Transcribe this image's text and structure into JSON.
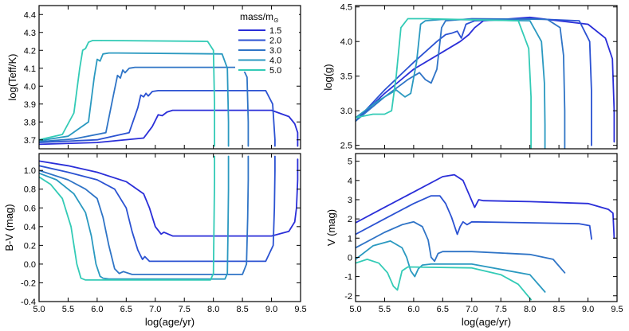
{
  "chart_data": {
    "type": "line",
    "legend": {
      "title_main": "mass/m",
      "title_sub": "⊙",
      "placement": "top-right of top-left panel"
    },
    "series_meta": [
      {
        "name": "1.5",
        "color": "#2a2ed8"
      },
      {
        "name": "2.0",
        "color": "#2b52d2"
      },
      {
        "name": "3.0",
        "color": "#2f74c6"
      },
      {
        "name": "4.0",
        "color": "#2a99c0"
      },
      {
        "name": "5.0",
        "color": "#33cbb6"
      }
    ],
    "panels": [
      {
        "id": "teff",
        "ylabel": "log(Teff/K)",
        "xlabel": "",
        "xlim": [
          5.0,
          9.5
        ],
        "ylim": [
          3.65,
          4.45
        ],
        "xticks": [],
        "yticks": [
          {
            "v": 3.7,
            "t": "3.7"
          },
          {
            "v": 3.8,
            "t": "3.8"
          },
          {
            "v": 3.9,
            "t": "3.9"
          },
          {
            "v": 4.0,
            "t": "4.0"
          },
          {
            "v": 4.1,
            "t": "4.1"
          },
          {
            "v": 4.2,
            "t": "4.2"
          },
          {
            "v": 4.3,
            "t": "4.3"
          },
          {
            "v": 4.4,
            "t": "4.4"
          }
        ],
        "series": [
          {
            "name": "1.5",
            "x": [
              5.0,
              6.0,
              6.8,
              6.95,
              7.05,
              7.12,
              7.2,
              7.3,
              9.0,
              9.3,
              9.4,
              9.45,
              9.45
            ],
            "y": [
              3.675,
              3.685,
              3.71,
              3.775,
              3.84,
              3.835,
              3.855,
              3.865,
              3.865,
              3.83,
              3.79,
              3.74,
              3.665
            ]
          },
          {
            "name": "2.0",
            "x": [
              5.0,
              6.0,
              6.55,
              6.7,
              6.75,
              6.8,
              6.84,
              6.88,
              6.95,
              7.05,
              8.9,
              9.02,
              9.06,
              9.06
            ],
            "y": [
              3.685,
              3.7,
              3.74,
              3.88,
              3.95,
              3.94,
              3.96,
              3.945,
              3.97,
              3.975,
              3.975,
              3.9,
              3.7,
              3.665
            ]
          },
          {
            "name": "3.0",
            "x": [
              5.0,
              5.6,
              6.15,
              6.28,
              6.35,
              6.4,
              6.44,
              6.48,
              6.55,
              6.65,
              8.5,
              8.58,
              8.6,
              8.6
            ],
            "y": [
              3.69,
              3.705,
              3.74,
              3.95,
              4.06,
              4.045,
              4.09,
              4.075,
              4.1,
              4.105,
              4.105,
              4.05,
              3.8,
              3.665
            ]
          },
          {
            "name": "4.0",
            "x": [
              5.0,
              5.5,
              5.85,
              5.95,
              6.0,
              6.05,
              6.1,
              6.2,
              6.35,
              8.15,
              8.24,
              8.26,
              8.26
            ],
            "y": [
              3.695,
              3.72,
              3.8,
              4.05,
              4.15,
              4.14,
              4.18,
              4.185,
              4.185,
              4.18,
              4.1,
              3.8,
              3.665
            ]
          },
          {
            "name": "5.0",
            "x": [
              5.0,
              5.4,
              5.6,
              5.7,
              5.75,
              5.8,
              5.85,
              5.92,
              6.05,
              7.9,
              8.0,
              8.02,
              8.02
            ],
            "y": [
              3.7,
              3.73,
              3.85,
              4.1,
              4.2,
              4.21,
              4.245,
              4.255,
              4.255,
              4.25,
              4.2,
              3.9,
              3.665
            ]
          }
        ]
      },
      {
        "id": "logg",
        "ylabel": "log(g)",
        "xlabel": "",
        "xlim": [
          5.0,
          9.5
        ],
        "ylim": [
          2.45,
          4.52
        ],
        "xticks": [],
        "yticks": [
          {
            "v": 2.5,
            "t": "2.5"
          },
          {
            "v": 3.0,
            "t": "3.0"
          },
          {
            "v": 3.5,
            "t": "3.5"
          },
          {
            "v": 4.0,
            "t": "4.0"
          },
          {
            "v": 4.5,
            "t": "4.5"
          }
        ],
        "series": [
          {
            "name": "1.5",
            "x": [
              5.0,
              5.5,
              6.0,
              6.5,
              6.8,
              6.95,
              7.05,
              7.2,
              8.0,
              9.0,
              9.3,
              9.42,
              9.45,
              9.45
            ],
            "y": [
              2.85,
              3.25,
              3.6,
              3.85,
              4.0,
              4.1,
              4.2,
              4.3,
              4.35,
              4.25,
              4.05,
              3.75,
              3.0,
              2.55
            ]
          },
          {
            "name": "2.0",
            "x": [
              5.0,
              5.5,
              6.0,
              6.4,
              6.55,
              6.65,
              6.75,
              6.82,
              6.9,
              7.05,
              8.0,
              8.85,
              9.03,
              9.06,
              9.06
            ],
            "y": [
              2.85,
              3.3,
              3.7,
              4.0,
              4.1,
              4.12,
              4.15,
              4.05,
              4.25,
              4.3,
              4.33,
              4.3,
              4.0,
              3.3,
              2.5
            ]
          },
          {
            "name": "3.0",
            "x": [
              5.0,
              5.5,
              5.9,
              6.1,
              6.2,
              6.3,
              6.4,
              6.48,
              6.55,
              7.0,
              8.3,
              8.52,
              8.58,
              8.6,
              8.6
            ],
            "y": [
              2.85,
              3.2,
              3.45,
              3.55,
              3.45,
              3.4,
              3.6,
              4.2,
              4.3,
              4.33,
              4.32,
              4.2,
              3.8,
              3.0,
              2.45
            ]
          },
          {
            "name": "4.0",
            "x": [
              5.0,
              5.4,
              5.7,
              5.85,
              5.95,
              6.05,
              6.12,
              6.2,
              6.5,
              8.0,
              8.2,
              8.25,
              8.26,
              8.26
            ],
            "y": [
              2.9,
              3.15,
              3.3,
              3.2,
              3.25,
              3.7,
              4.25,
              4.3,
              4.32,
              4.3,
              4.0,
              3.4,
              2.8,
              2.45
            ]
          },
          {
            "name": "5.0",
            "x": [
              5.0,
              5.3,
              5.5,
              5.62,
              5.7,
              5.78,
              5.9,
              6.2,
              7.8,
              7.98,
              8.02,
              8.02
            ],
            "y": [
              2.9,
              2.95,
              2.95,
              3.0,
              3.5,
              4.2,
              4.33,
              4.33,
              4.3,
              3.9,
              3.2,
              2.45
            ]
          }
        ]
      },
      {
        "id": "bv",
        "ylabel": "B-V (mag)",
        "xlabel": "log(age/yr)",
        "xlim": [
          5.0,
          9.5
        ],
        "ylim": [
          -0.4,
          1.18
        ],
        "xticks": [
          {
            "v": 5.0,
            "t": "5.0"
          },
          {
            "v": 5.5,
            "t": "5.5"
          },
          {
            "v": 6.0,
            "t": "6.0"
          },
          {
            "v": 6.5,
            "t": "6.5"
          },
          {
            "v": 7.0,
            "t": "7.0"
          },
          {
            "v": 7.5,
            "t": "7.5"
          },
          {
            "v": 8.0,
            "t": "8.0"
          },
          {
            "v": 8.5,
            "t": "8.5"
          },
          {
            "v": 9.0,
            "t": "9.0"
          },
          {
            "v": 9.5,
            "t": "9.5"
          }
        ],
        "yticks": [
          {
            "v": -0.4,
            "t": "-0.4"
          },
          {
            "v": -0.2,
            "t": "-0.2"
          },
          {
            "v": 0.0,
            "t": "0.0"
          },
          {
            "v": 0.2,
            "t": "0.2"
          },
          {
            "v": 0.4,
            "t": "0.4"
          },
          {
            "v": 0.6,
            "t": "0.6"
          },
          {
            "v": 0.8,
            "t": "0.8"
          },
          {
            "v": 1.0,
            "t": "1.0"
          }
        ],
        "series": [
          {
            "name": "1.5",
            "x": [
              5.0,
              5.5,
              6.0,
              6.5,
              6.8,
              6.9,
              7.0,
              7.1,
              7.15,
              7.3,
              8.5,
              9.0,
              9.3,
              9.4,
              9.43,
              9.45,
              9.45
            ],
            "y": [
              1.1,
              1.05,
              0.98,
              0.88,
              0.75,
              0.6,
              0.4,
              0.32,
              0.34,
              0.3,
              0.3,
              0.3,
              0.35,
              0.45,
              0.6,
              0.9,
              1.12
            ]
          },
          {
            "name": "2.0",
            "x": [
              5.0,
              5.5,
              6.0,
              6.3,
              6.5,
              6.6,
              6.7,
              6.78,
              6.82,
              6.9,
              7.2,
              8.9,
              9.03,
              9.05,
              9.06,
              9.06
            ],
            "y": [
              1.05,
              0.98,
              0.9,
              0.8,
              0.6,
              0.35,
              0.15,
              0.05,
              0.08,
              0.03,
              0.03,
              0.03,
              0.2,
              0.6,
              1.0,
              1.15
            ]
          },
          {
            "name": "3.0",
            "x": [
              5.0,
              5.5,
              5.8,
              6.0,
              6.1,
              6.2,
              6.3,
              6.38,
              6.45,
              6.6,
              8.5,
              8.57,
              8.59,
              8.6,
              8.6
            ],
            "y": [
              1.0,
              0.9,
              0.8,
              0.7,
              0.5,
              0.2,
              -0.05,
              -0.1,
              -0.08,
              -0.11,
              -0.11,
              0.0,
              0.5,
              0.9,
              1.15
            ]
          },
          {
            "name": "4.0",
            "x": [
              5.0,
              5.3,
              5.6,
              5.8,
              5.9,
              5.98,
              6.05,
              6.1,
              6.2,
              8.2,
              8.24,
              8.25,
              8.26,
              8.26
            ],
            "y": [
              0.97,
              0.9,
              0.75,
              0.55,
              0.3,
              0.0,
              -0.13,
              -0.15,
              -0.16,
              -0.16,
              -0.1,
              0.3,
              0.8,
              1.15
            ]
          },
          {
            "name": "5.0",
            "x": [
              5.0,
              5.2,
              5.4,
              5.55,
              5.65,
              5.72,
              5.8,
              6.0,
              7.95,
              8.0,
              8.01,
              8.02,
              8.02
            ],
            "y": [
              0.93,
              0.85,
              0.7,
              0.4,
              0.0,
              -0.15,
              -0.17,
              -0.17,
              -0.17,
              -0.1,
              0.4,
              0.9,
              1.15
            ]
          }
        ]
      },
      {
        "id": "vmag",
        "ylabel": "V (mag)",
        "xlabel": "log(age/yr)",
        "xlim": [
          5.0,
          9.5
        ],
        "ylim": [
          -2.3,
          5.4
        ],
        "xticks": [
          {
            "v": 5.0,
            "t": "5.0"
          },
          {
            "v": 5.5,
            "t": "5.5"
          },
          {
            "v": 6.0,
            "t": "6.0"
          },
          {
            "v": 6.5,
            "t": "6.5"
          },
          {
            "v": 7.0,
            "t": "7.0"
          },
          {
            "v": 7.5,
            "t": "7.5"
          },
          {
            "v": 8.0,
            "t": "8.0"
          },
          {
            "v": 8.5,
            "t": "8.5"
          },
          {
            "v": 9.0,
            "t": "9.0"
          },
          {
            "v": 9.5,
            "t": "9.5"
          }
        ],
        "yticks": [
          {
            "v": -2,
            "t": "-2"
          },
          {
            "v": -1,
            "t": "-1"
          },
          {
            "v": 0,
            "t": "0"
          },
          {
            "v": 1,
            "t": "1"
          },
          {
            "v": 2,
            "t": "2"
          },
          {
            "v": 3,
            "t": "3"
          },
          {
            "v": 4,
            "t": "4"
          },
          {
            "v": 5,
            "t": "5"
          }
        ],
        "series": [
          {
            "name": "1.5",
            "x": [
              5.0,
              5.5,
              6.0,
              6.5,
              6.7,
              6.85,
              6.95,
              7.05,
              7.12,
              7.2,
              8.0,
              9.0,
              9.35,
              9.43,
              9.45
            ],
            "y": [
              1.8,
              2.6,
              3.4,
              4.2,
              4.3,
              4.0,
              3.3,
              2.6,
              3.0,
              2.95,
              2.9,
              2.8,
              2.5,
              2.3,
              1.0
            ]
          },
          {
            "name": "2.0",
            "x": [
              5.0,
              5.5,
              6.0,
              6.3,
              6.45,
              6.55,
              6.65,
              6.75,
              6.8,
              6.85,
              6.92,
              7.0,
              8.0,
              8.85,
              9.03,
              9.06,
              9.06
            ],
            "y": [
              1.2,
              2.0,
              2.8,
              3.2,
              3.2,
              2.8,
              2.1,
              1.2,
              1.6,
              1.85,
              1.7,
              1.85,
              1.8,
              1.75,
              1.65,
              1.0,
              0.95
            ]
          },
          {
            "name": "3.0",
            "x": [
              5.0,
              5.5,
              5.8,
              6.0,
              6.15,
              6.25,
              6.3,
              6.36,
              6.42,
              6.5,
              7.0,
              8.0,
              8.4,
              8.6
            ],
            "y": [
              0.5,
              1.3,
              1.7,
              1.85,
              1.6,
              0.9,
              0.0,
              -0.2,
              0.2,
              0.3,
              0.3,
              0.15,
              -0.1,
              -0.8
            ]
          },
          {
            "name": "4.0",
            "x": [
              5.0,
              5.3,
              5.6,
              5.8,
              5.88,
              5.95,
              6.02,
              6.08,
              6.15,
              6.3,
              7.0,
              8.0,
              8.26
            ],
            "y": [
              -0.1,
              0.6,
              0.85,
              0.5,
              0.0,
              -0.7,
              -1.0,
              -0.6,
              -0.4,
              -0.35,
              -0.35,
              -0.9,
              -1.8
            ]
          },
          {
            "name": "5.0",
            "x": [
              5.0,
              5.2,
              5.4,
              5.55,
              5.65,
              5.72,
              5.8,
              5.9,
              7.0,
              7.5,
              7.8,
              8.02
            ],
            "y": [
              -0.3,
              -0.1,
              -0.3,
              -0.8,
              -1.5,
              -1.7,
              -0.7,
              -0.5,
              -0.55,
              -0.9,
              -1.4,
              -2.2
            ]
          }
        ]
      }
    ]
  }
}
